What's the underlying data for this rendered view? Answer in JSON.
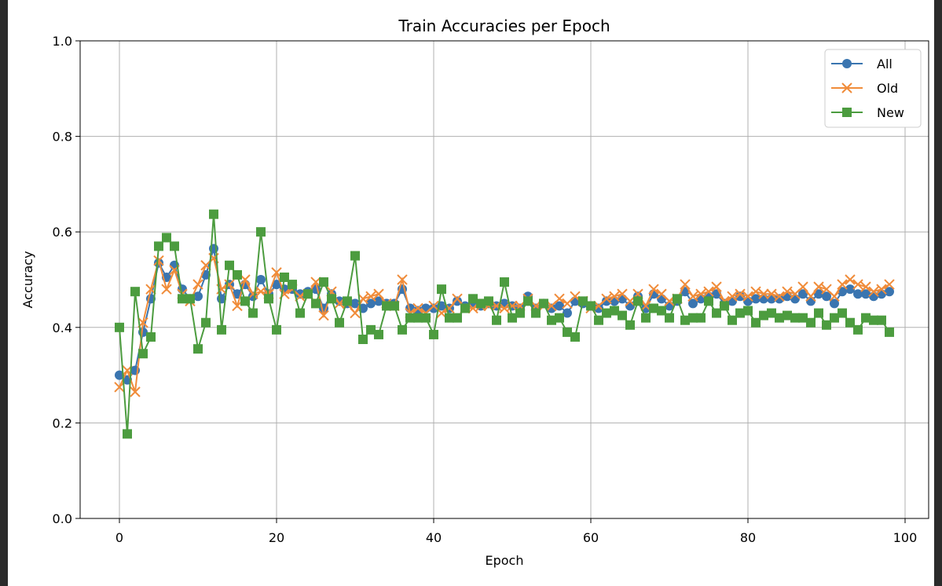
{
  "chart_data": {
    "type": "line",
    "title": "Train Accuracies per Epoch",
    "xlabel": "Epoch",
    "ylabel": "Accuracy",
    "xlim": [
      -5,
      103
    ],
    "ylim": [
      0.0,
      1.0
    ],
    "xticks": [
      0,
      20,
      40,
      60,
      80,
      100
    ],
    "xtick_labels": [
      "0",
      "20",
      "40",
      "60",
      "80",
      "100"
    ],
    "yticks": [
      0.0,
      0.2,
      0.4,
      0.6,
      0.8,
      1.0
    ],
    "ytick_labels": [
      "0.0",
      "0.2",
      "0.4",
      "0.6",
      "0.8",
      "1.0"
    ],
    "grid": true,
    "legend_position": "top-right",
    "x": [
      0,
      1,
      2,
      3,
      4,
      5,
      6,
      7,
      8,
      9,
      10,
      11,
      12,
      13,
      14,
      15,
      16,
      17,
      18,
      19,
      20,
      21,
      22,
      23,
      24,
      25,
      26,
      27,
      28,
      29,
      30,
      31,
      32,
      33,
      34,
      35,
      36,
      37,
      38,
      39,
      40,
      41,
      42,
      43,
      44,
      45,
      46,
      47,
      48,
      49,
      50,
      51,
      52,
      53,
      54,
      55,
      56,
      57,
      58,
      59,
      60,
      61,
      62,
      63,
      64,
      65,
      66,
      67,
      68,
      69,
      70,
      71,
      72,
      73,
      74,
      75,
      76,
      77,
      78,
      79,
      80,
      81,
      82,
      83,
      84,
      85,
      86,
      87,
      88,
      89,
      90,
      91,
      92,
      93,
      94,
      95,
      96,
      97,
      98
    ],
    "series": [
      {
        "name": "All",
        "color": "#3a75b0",
        "marker": "circle",
        "values": [
          0.3,
          0.29,
          0.31,
          0.39,
          0.46,
          0.535,
          0.505,
          0.53,
          0.48,
          0.46,
          0.465,
          0.51,
          0.565,
          0.46,
          0.49,
          0.47,
          0.49,
          0.465,
          0.5,
          0.47,
          0.49,
          0.48,
          0.48,
          0.47,
          0.475,
          0.48,
          0.44,
          0.47,
          0.455,
          0.45,
          0.45,
          0.44,
          0.45,
          0.455,
          0.45,
          0.45,
          0.48,
          0.44,
          0.435,
          0.44,
          0.44,
          0.445,
          0.44,
          0.455,
          0.445,
          0.45,
          0.445,
          0.45,
          0.445,
          0.45,
          0.445,
          0.44,
          0.465,
          0.44,
          0.45,
          0.44,
          0.445,
          0.43,
          0.455,
          0.45,
          0.445,
          0.44,
          0.455,
          0.455,
          0.46,
          0.445,
          0.465,
          0.44,
          0.47,
          0.46,
          0.445,
          0.455,
          0.475,
          0.45,
          0.46,
          0.465,
          0.47,
          0.45,
          0.455,
          0.465,
          0.455,
          0.46,
          0.46,
          0.46,
          0.46,
          0.465,
          0.46,
          0.47,
          0.455,
          0.47,
          0.465,
          0.45,
          0.475,
          0.48,
          0.47,
          0.47,
          0.465,
          0.47,
          0.475
        ]
      },
      {
        "name": "Old",
        "color": "#f08c3a",
        "marker": "x",
        "values": [
          0.275,
          0.31,
          0.265,
          0.41,
          0.48,
          0.54,
          0.48,
          0.52,
          0.47,
          0.455,
          0.49,
          0.53,
          0.545,
          0.48,
          0.49,
          0.445,
          0.5,
          0.47,
          0.475,
          0.47,
          0.515,
          0.47,
          0.48,
          0.465,
          0.47,
          0.495,
          0.425,
          0.475,
          0.45,
          0.45,
          0.43,
          0.46,
          0.465,
          0.47,
          0.45,
          0.445,
          0.5,
          0.43,
          0.44,
          0.43,
          0.445,
          0.43,
          0.44,
          0.46,
          0.44,
          0.44,
          0.445,
          0.445,
          0.445,
          0.44,
          0.445,
          0.445,
          0.46,
          0.445,
          0.445,
          0.445,
          0.46,
          0.45,
          0.465,
          0.455,
          0.44,
          0.445,
          0.46,
          0.465,
          0.47,
          0.455,
          0.47,
          0.445,
          0.48,
          0.47,
          0.455,
          0.46,
          0.49,
          0.465,
          0.47,
          0.475,
          0.485,
          0.455,
          0.465,
          0.47,
          0.465,
          0.475,
          0.47,
          0.47,
          0.465,
          0.475,
          0.47,
          0.485,
          0.465,
          0.485,
          0.48,
          0.465,
          0.49,
          0.5,
          0.49,
          0.485,
          0.475,
          0.48,
          0.49
        ]
      },
      {
        "name": "New",
        "color": "#4c9c3f",
        "marker": "square",
        "values": [
          0.4,
          0.177,
          0.475,
          0.345,
          0.38,
          0.57,
          0.588,
          0.57,
          0.46,
          0.46,
          0.355,
          0.41,
          0.637,
          0.395,
          0.53,
          0.51,
          0.455,
          0.43,
          0.6,
          0.46,
          0.395,
          0.505,
          0.49,
          0.43,
          0.47,
          0.45,
          0.495,
          0.46,
          0.41,
          0.455,
          0.55,
          0.375,
          0.395,
          0.385,
          0.445,
          0.445,
          0.395,
          0.42,
          0.42,
          0.42,
          0.385,
          0.48,
          0.42,
          0.42,
          0.44,
          0.46,
          0.45,
          0.455,
          0.415,
          0.495,
          0.42,
          0.43,
          0.455,
          0.43,
          0.45,
          0.415,
          0.42,
          0.39,
          0.38,
          0.455,
          0.445,
          0.415,
          0.43,
          0.435,
          0.425,
          0.405,
          0.455,
          0.42,
          0.44,
          0.435,
          0.42,
          0.46,
          0.415,
          0.42,
          0.42,
          0.455,
          0.43,
          0.445,
          0.415,
          0.43,
          0.435,
          0.41,
          0.425,
          0.43,
          0.42,
          0.425,
          0.42,
          0.42,
          0.41,
          0.43,
          0.405,
          0.42,
          0.43,
          0.41,
          0.395,
          0.42,
          0.415,
          0.415,
          0.39
        ]
      }
    ]
  }
}
